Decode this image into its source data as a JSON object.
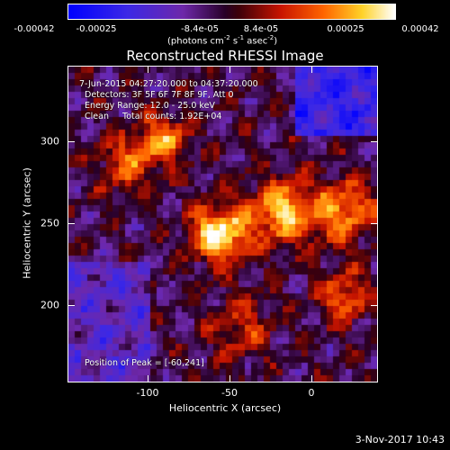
{
  "colorbar": {
    "ticks": [
      "-0.00042",
      "-0.00025",
      "-8.4e-05",
      "8.4e-05",
      "0.00025",
      "0.00042"
    ],
    "units_html": "(photons cm<sup>-2</sup> s<sup>-1</sup> asec<sup>-2</sup>)"
  },
  "title": "Reconstructed RHESSI Image",
  "info": {
    "time_range": "7-Jun-2015 04:27:20.000 to 04:37:20.000",
    "detectors": "Detectors: 3F 5F 6F 7F 8F 9F, Att 0",
    "energy": "Energy Range: 12.0 - 25.0 keV",
    "clean": "Clean     Total counts: 1.92E+04",
    "peak": "Position of Peak = [-60,241]"
  },
  "axes": {
    "xlabel": "Heliocentric X (arcsec)",
    "ylabel": "Heliocentric Y (arcsec)",
    "xticks": [
      "-100",
      "-50",
      "0"
    ],
    "yticks": [
      "300",
      "250",
      "200"
    ],
    "xlim": [
      -145,
      40
    ],
    "ylim": [
      150,
      345
    ]
  },
  "timestamp": "3-Nov-2017 10:43",
  "colors": {
    "low": "#0000ff",
    "mid_low": "#6a2bb8",
    "zero": "#1a0010",
    "mid_high": "#ff4000",
    "high": "#ffffff"
  }
}
